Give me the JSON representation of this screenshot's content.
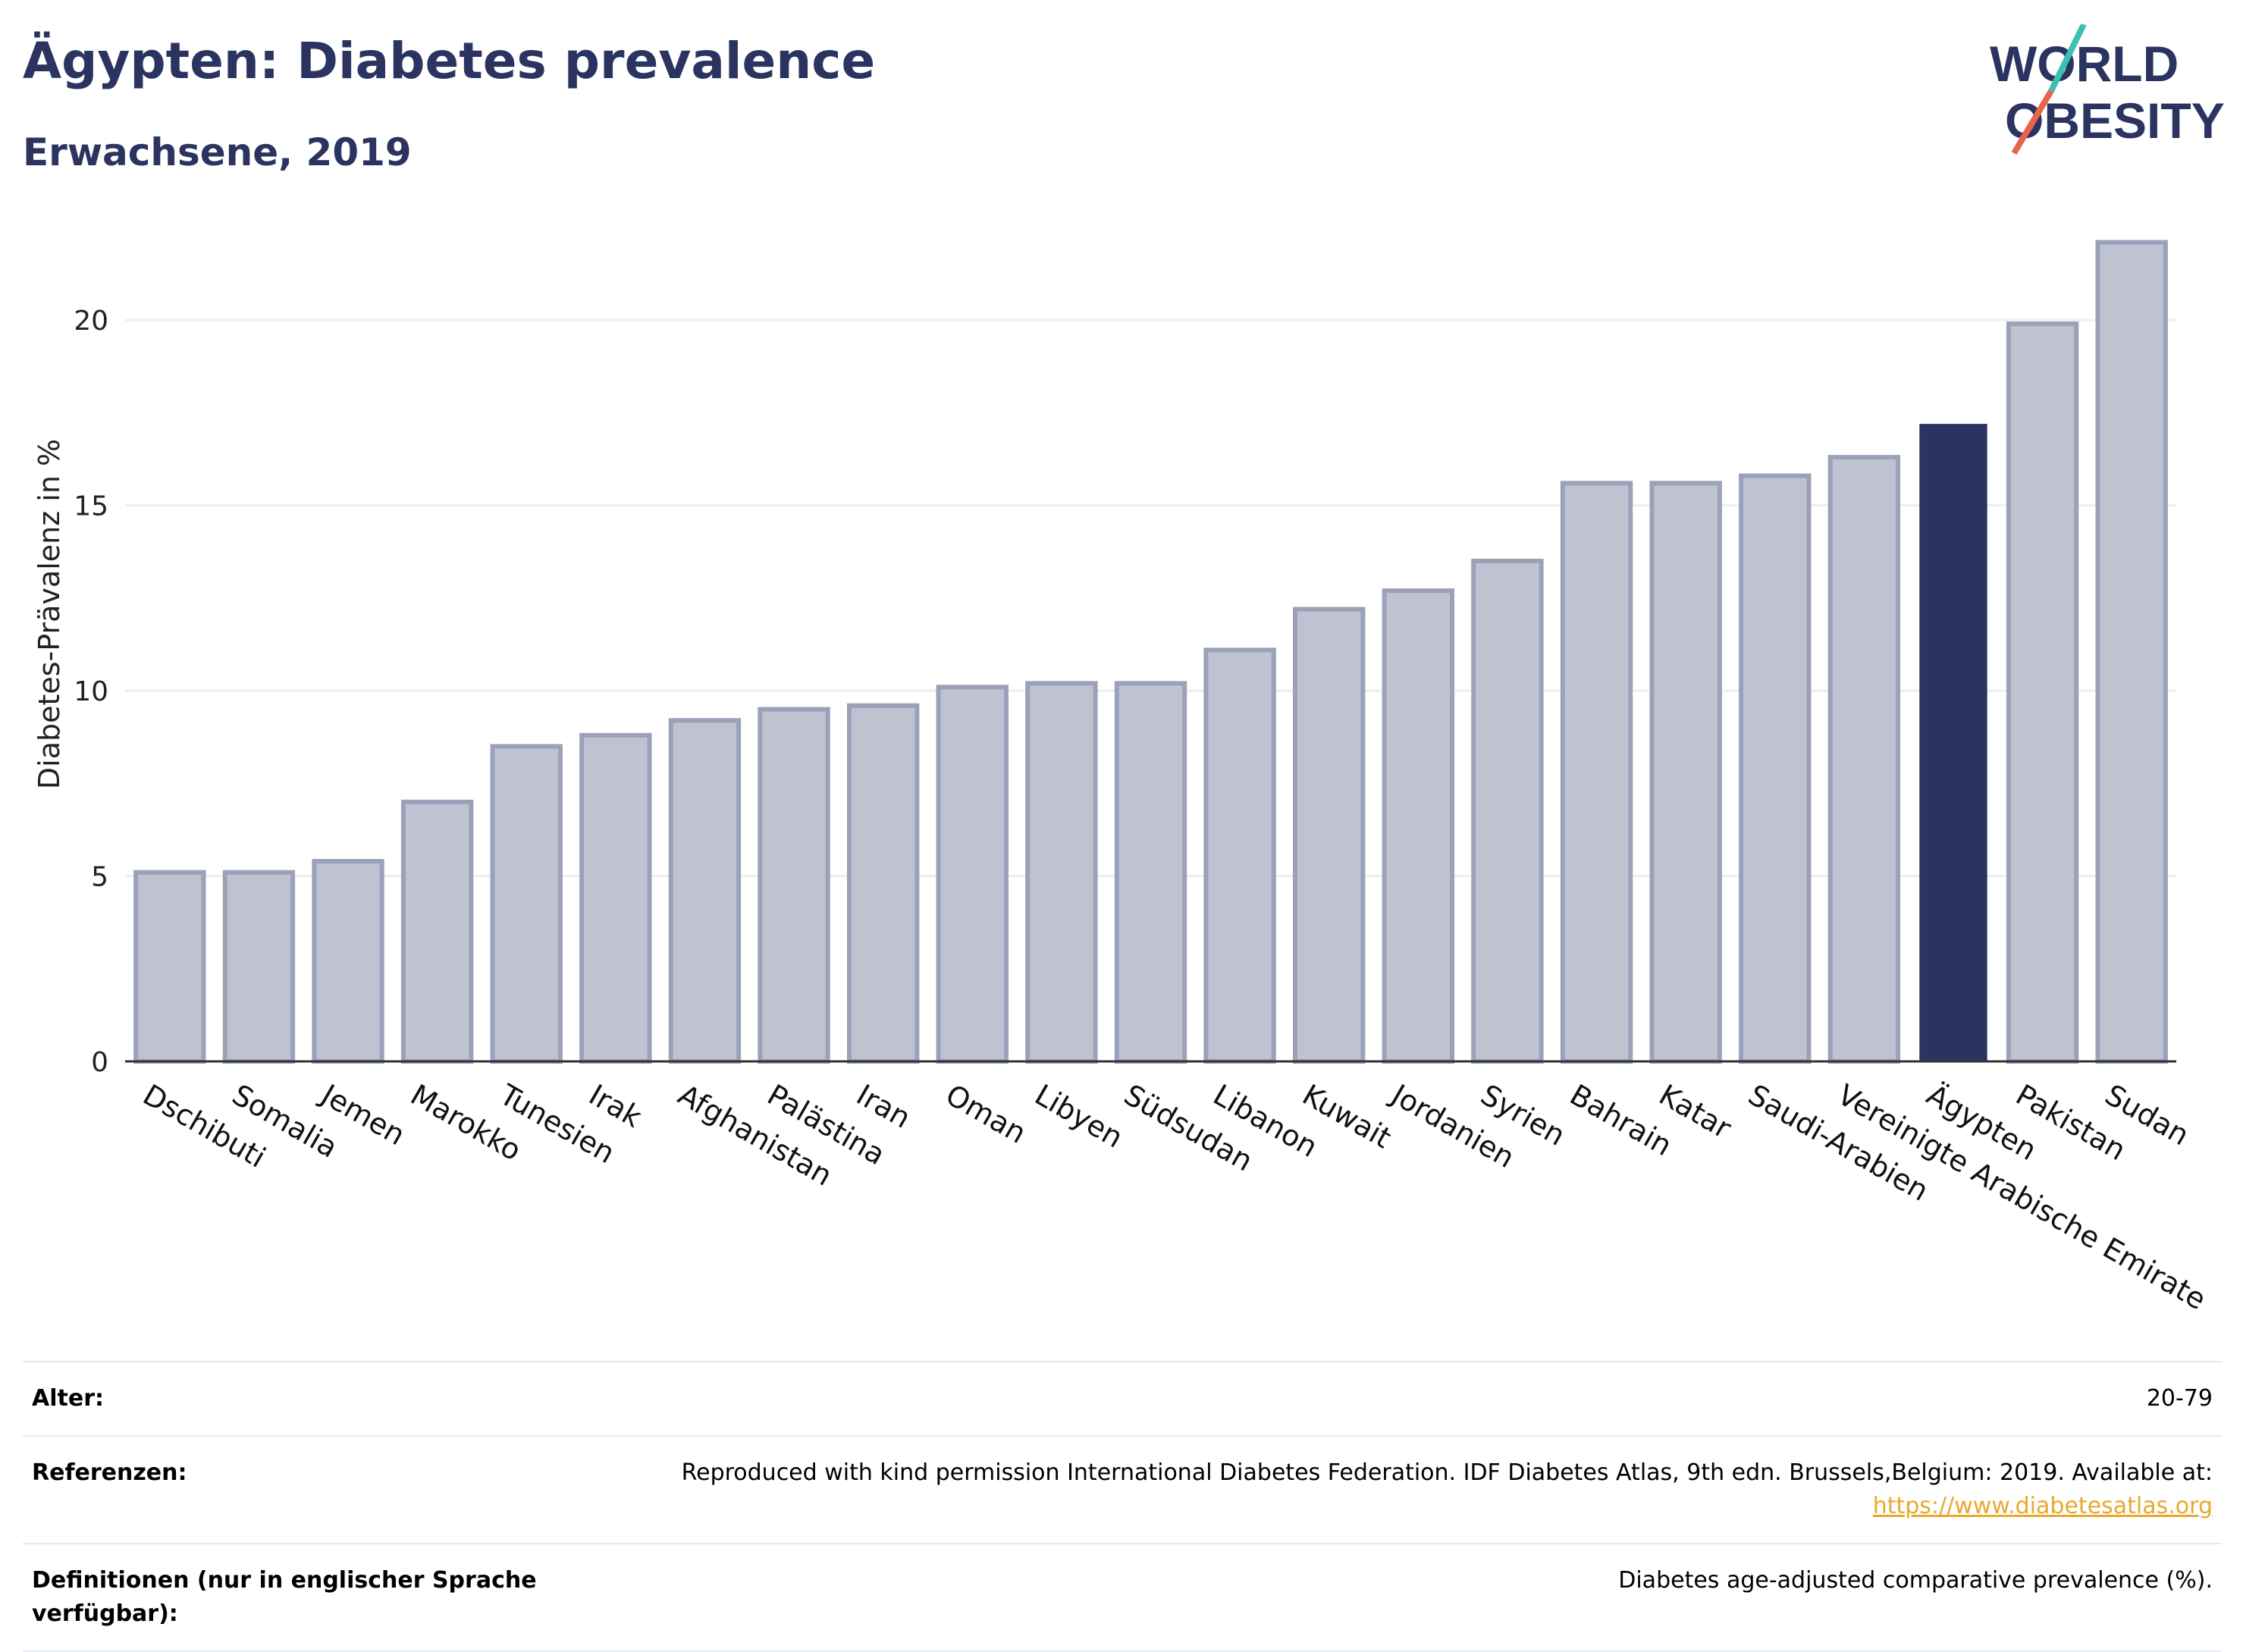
{
  "header": {
    "title": "Ägypten: Diabetes prevalence",
    "subtitle": "Erwachsene, 2019"
  },
  "logo": {
    "line1": "WORLD",
    "line2": "OBESITY",
    "colors": {
      "text": "#2b3460",
      "teal": "#3bbfb2",
      "coral": "#e8644e"
    }
  },
  "chart_data": {
    "type": "bar",
    "title": "",
    "xlabel": "",
    "ylabel": "Diabetes-Prävalenz in %",
    "ylim": [
      0,
      22.5
    ],
    "yticks": [
      0,
      5,
      10,
      15,
      20
    ],
    "grid": true,
    "categories": [
      "Dschibuti",
      "Somalia",
      "Jemen",
      "Marokko",
      "Tunesien",
      "Irak",
      "Afghanistan",
      "Palästina",
      "Iran",
      "Oman",
      "Libyen",
      "Südsudan",
      "Libanon",
      "Kuwait",
      "Jordanien",
      "Syrien",
      "Bahrain",
      "Katar",
      "Saudi-Arabien",
      "Vereinigte Arabische Emirate",
      "Ägypten",
      "Pakistan",
      "Sudan"
    ],
    "values": [
      5.1,
      5.1,
      5.4,
      7.0,
      8.5,
      8.8,
      9.2,
      9.5,
      9.6,
      10.1,
      10.2,
      10.2,
      11.1,
      12.2,
      12.7,
      13.5,
      15.6,
      15.6,
      15.8,
      16.3,
      17.2,
      19.9,
      22.1
    ],
    "highlight": "Ägypten",
    "colors": {
      "default_fill": "#bfc3d1",
      "default_stroke": "#9ba1b8",
      "highlight": "#2b3460",
      "grid": "#eeeeee",
      "axis": "#333333"
    }
  },
  "meta": {
    "rows": [
      {
        "label": "Alter:",
        "value": "20-79"
      },
      {
        "label": "Referenzen:",
        "value": "Reproduced with kind permission International Diabetes Federation. IDF Diabetes Atlas, 9th edn. Brussels,Belgium: 2019. Available at:",
        "link": "https://www.diabetesatlas.org"
      },
      {
        "label": "Definitionen (nur in englischer Sprache verfügbar):",
        "value": "Diabetes age-adjusted comparative prevalence (%)."
      }
    ]
  }
}
